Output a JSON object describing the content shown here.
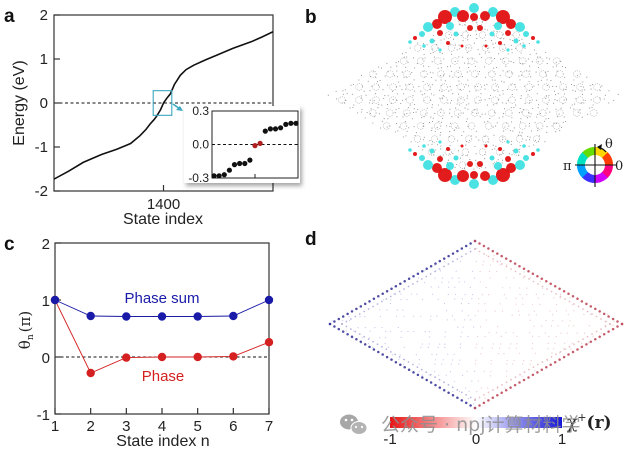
{
  "figure": {
    "panel_labels": [
      "a",
      "b",
      "c",
      "d"
    ],
    "watermark": "公众号 · npj计算材料学",
    "watermark_icon": "wechat-icon"
  },
  "chart_data": [
    {
      "panel": "a",
      "type": "line",
      "title": "",
      "xlabel": "State index",
      "ylabel": "Energy (eV)",
      "xlim": [
        1100,
        1700
      ],
      "ylim": [
        -2,
        2
      ],
      "xticks": [
        1400
      ],
      "xtick_labels": [
        "1400"
      ],
      "yticks": [
        -2,
        -1,
        0,
        1,
        2
      ],
      "ytick_labels": [
        "-2",
        "-1",
        "0",
        "1",
        "2"
      ],
      "reference_line": {
        "y": 0,
        "style": "dashed"
      },
      "series": [
        {
          "name": "energy",
          "color": "#111111",
          "x": [
            1100,
            1140,
            1180,
            1230,
            1272,
            1310,
            1336,
            1352,
            1363,
            1374,
            1382,
            1392,
            1400,
            1410,
            1419,
            1430,
            1446,
            1462,
            1483,
            1515,
            1547,
            1590,
            1640,
            1670,
            1700
          ],
          "y": [
            -1.73,
            -1.55,
            -1.35,
            -1.17,
            -1.05,
            -0.92,
            -0.74,
            -0.6,
            -0.48,
            -0.38,
            -0.29,
            -0.15,
            0.0,
            0.12,
            0.21,
            0.42,
            0.63,
            0.76,
            0.86,
            0.98,
            1.09,
            1.24,
            1.39,
            1.5,
            1.62
          ]
        }
      ],
      "highlight_box": {
        "x": [
          1380,
          1420
        ],
        "y": [
          -0.28,
          0.28
        ],
        "color": "#3aa6c0"
      },
      "inset": {
        "type": "scatter",
        "ylim": [
          -0.3,
          0.3
        ],
        "yticks": [
          -0.3,
          0.0,
          0.3
        ],
        "ytick_labels": [
          "-0.3",
          "0.0",
          "0.3"
        ],
        "reference_line": {
          "y": 0,
          "style": "dashed"
        },
        "points": [
          {
            "y": -0.28,
            "color": "#111111"
          },
          {
            "y": -0.28,
            "color": "#111111"
          },
          {
            "y": -0.27,
            "color": "#111111"
          },
          {
            "y": -0.23,
            "color": "#111111"
          },
          {
            "y": -0.18,
            "color": "#111111"
          },
          {
            "y": -0.17,
            "color": "#111111"
          },
          {
            "y": -0.17,
            "color": "#111111"
          },
          {
            "y": -0.14,
            "color": "#111111"
          },
          {
            "y": -0.01,
            "color": "#b02020"
          },
          {
            "y": 0.01,
            "color": "#b02020"
          },
          {
            "y": 0.12,
            "color": "#111111"
          },
          {
            "y": 0.14,
            "color": "#111111"
          },
          {
            "y": 0.14,
            "color": "#111111"
          },
          {
            "y": 0.15,
            "color": "#111111"
          },
          {
            "y": 0.18,
            "color": "#111111"
          },
          {
            "y": 0.19,
            "color": "#111111"
          },
          {
            "y": 0.19,
            "color": "#111111"
          }
        ]
      }
    },
    {
      "panel": "b",
      "type": "scatter",
      "title": "",
      "description": "Rhombic quasicrystal lattice; wavefunction amplitude (circle size) and phase (color) localized at top and bottom corners",
      "phase_colorwheel": {
        "label": "θ",
        "left_label": "π",
        "right_label": "0",
        "colors": [
          "#ff3b00",
          "#ffd500",
          "#66dd00",
          "#00e0c0",
          "#00a0ff",
          "#3a30ff",
          "#d000ff",
          "#ff0080"
        ]
      },
      "dominant_colors": {
        "red": "#e01010",
        "cyan": "#40e0e0",
        "lattice": "#9a9a9a"
      }
    },
    {
      "panel": "c",
      "type": "line",
      "title": "",
      "xlabel": "State index n",
      "ylabel": "θn (π)",
      "ylabel_main": "θ",
      "ylabel_sub": "n",
      "ylabel_unit": "(π)",
      "xlim": [
        1,
        7
      ],
      "ylim": [
        -1,
        2
      ],
      "xticks": [
        1,
        2,
        3,
        4,
        5,
        6,
        7
      ],
      "xtick_labels": [
        "1",
        "2",
        "3",
        "4",
        "5",
        "6",
        "7"
      ],
      "yticks": [
        -1,
        0,
        1,
        2
      ],
      "ytick_labels": [
        "-1",
        "0",
        "1",
        "2"
      ],
      "reference_line": {
        "y": 0,
        "style": "dashed"
      },
      "categories": [
        1,
        2,
        3,
        4,
        5,
        6,
        7
      ],
      "series": [
        {
          "name": "Phase sum",
          "color": "#1a1aa8",
          "values": [
            1.0,
            0.72,
            0.71,
            0.71,
            0.71,
            0.72,
            1.0
          ]
        },
        {
          "name": "Phase",
          "color": "#d42020",
          "values": [
            1.0,
            -0.28,
            -0.01,
            0.0,
            0.0,
            0.01,
            0.26
          ]
        }
      ]
    },
    {
      "panel": "d",
      "type": "heatmap",
      "title": "",
      "description": "Rhombic lattice map of chirality; blue along left edges, red along right edges, near-white interior",
      "colorbar": {
        "label": "χ⁺(r)",
        "label_main": "χ",
        "label_sup": "+",
        "label_arg": "(r)",
        "range": [
          -1,
          1
        ],
        "ticks": [
          -1,
          0,
          1
        ],
        "tick_labels": [
          "-1",
          "0",
          "1"
        ],
        "colors": [
          "#e81515",
          "#ffffff",
          "#1515d8"
        ]
      }
    }
  ]
}
